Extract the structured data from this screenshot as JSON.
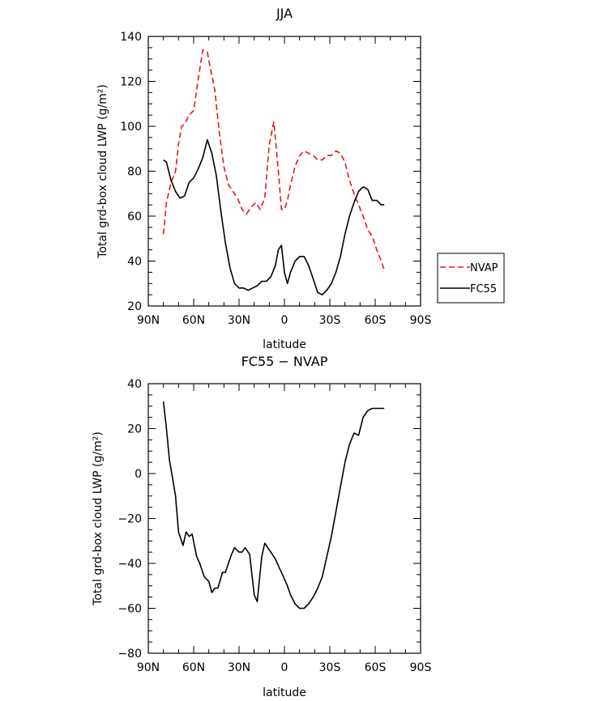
{
  "chart_data": [
    {
      "type": "line",
      "title": "JJA",
      "xlabel": "latitude",
      "ylabel": "Total grd-box cloud LWP (g/m²)",
      "xlim": [
        90,
        -90
      ],
      "ylim": [
        20,
        140
      ],
      "xticks": [
        90,
        60,
        30,
        0,
        -30,
        -60,
        -90
      ],
      "xticklabels": [
        "90N",
        "60N",
        "30N",
        "0",
        "30S",
        "60S",
        "90S"
      ],
      "yticks": [
        20,
        40,
        60,
        80,
        100,
        120,
        140
      ],
      "legend": {
        "position": "right",
        "entries": [
          "NVAP",
          "FC55"
        ]
      },
      "series": [
        {
          "name": "NVAP",
          "color": "#e8141c",
          "dash": "dashed",
          "x": [
            80,
            78,
            75,
            72,
            70,
            68,
            66,
            63,
            60,
            57,
            54,
            51,
            49,
            46,
            43,
            40,
            37,
            35,
            31,
            28,
            25,
            22,
            19,
            16,
            13,
            10,
            7,
            4,
            2,
            0,
            -2,
            -4,
            -7,
            -10,
            -13,
            -16,
            -19,
            -22,
            -25,
            -28,
            -31,
            -34,
            -37,
            -40,
            -43,
            -46,
            -49,
            -52,
            -55,
            -58,
            -61,
            -64,
            -66
          ],
          "y": [
            52,
            66,
            75,
            80,
            92,
            100,
            101,
            105,
            107,
            121,
            134,
            133,
            126,
            116,
            97,
            82,
            74,
            72,
            68,
            63,
            61,
            64,
            66,
            63,
            68,
            92,
            102,
            80,
            63,
            63,
            67,
            74,
            82,
            87,
            89,
            88,
            87,
            85,
            85,
            87,
            87,
            89,
            88,
            84,
            76,
            70,
            65,
            60,
            54,
            51,
            45,
            40,
            36
          ]
        },
        {
          "name": "FC55",
          "color": "#000000",
          "dash": "solid",
          "x": [
            80,
            78,
            75,
            72,
            69,
            66,
            63,
            60,
            57,
            54,
            51,
            48,
            45,
            42,
            39,
            36,
            33,
            30,
            27,
            24,
            21,
            18,
            15,
            12,
            9,
            6,
            4,
            2,
            0,
            -2,
            -4,
            -7,
            -10,
            -13,
            -16,
            -19,
            -22,
            -25,
            -28,
            -31,
            -34,
            -37,
            -40,
            -43,
            -46,
            -49,
            -52,
            -55,
            -58,
            -61,
            -64,
            -66
          ],
          "y": [
            85,
            84,
            76,
            71,
            68,
            69,
            75,
            77,
            81,
            86,
            94,
            88,
            78,
            62,
            48,
            37,
            30,
            28,
            28,
            27,
            28,
            29,
            31,
            31,
            33,
            38,
            45,
            47,
            35,
            30,
            35,
            40,
            42,
            42,
            38,
            32,
            26,
            25,
            27,
            30,
            35,
            42,
            52,
            60,
            66,
            71,
            73,
            72,
            67,
            67,
            65,
            65
          ]
        }
      ]
    },
    {
      "type": "line",
      "title": "FC55 − NVAP",
      "xlabel": "latitude",
      "ylabel": "Total grd-box cloud LWP (g/m²)",
      "xlim": [
        90,
        -90
      ],
      "ylim": [
        -80,
        40
      ],
      "xticks": [
        90,
        60,
        30,
        0,
        -30,
        -60,
        -90
      ],
      "xticklabels": [
        "90N",
        "60N",
        "30N",
        "0",
        "30S",
        "60S",
        "90S"
      ],
      "yticks": [
        -80,
        -60,
        -40,
        -20,
        0,
        20,
        40
      ],
      "series": [
        {
          "color": "#000000",
          "dash": "solid",
          "x": [
            80,
            78,
            76,
            74,
            72,
            70,
            67,
            65,
            63,
            61,
            58,
            56,
            53,
            50,
            48,
            46,
            44,
            41,
            39,
            37,
            35,
            33,
            30,
            28,
            26,
            23,
            20,
            18,
            15,
            13,
            10,
            8,
            6,
            4,
            2,
            0,
            -2,
            -4,
            -7,
            -10,
            -13,
            -16,
            -19,
            -22,
            -25,
            -28,
            -31,
            -34,
            -37,
            -40,
            -43,
            -46,
            -49,
            -52,
            -55,
            -58,
            -61,
            -63,
            -66
          ],
          "y": [
            32,
            20,
            6,
            -2,
            -10,
            -26,
            -32,
            -26,
            -28,
            -27,
            -37,
            -40,
            -46,
            -48,
            -53,
            -51,
            -51,
            -44,
            -44,
            -40,
            -36,
            -33,
            -35,
            -35,
            -33,
            -36,
            -54,
            -57,
            -37,
            -31,
            -34,
            -36,
            -38,
            -41,
            -44,
            -47,
            -50,
            -54,
            -58,
            -60,
            -60,
            -58,
            -55,
            -51,
            -46,
            -37,
            -28,
            -17,
            -6,
            5,
            13,
            18,
            17,
            25,
            28,
            29,
            29,
            29,
            29
          ]
        }
      ]
    }
  ]
}
